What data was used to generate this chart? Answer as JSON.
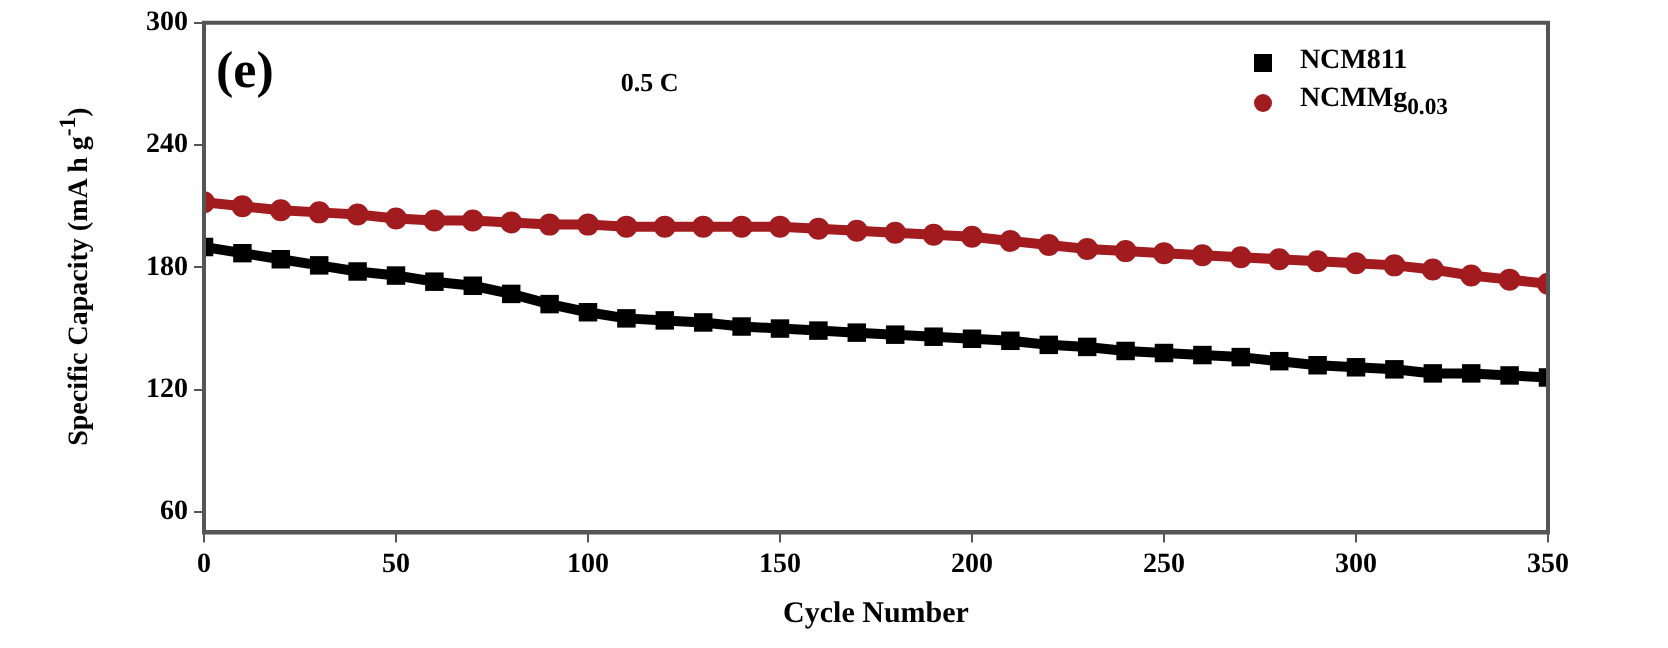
{
  "chart_data": {
    "type": "line",
    "xlabel": "Cycle Number",
    "ylabel": "Specific Capacity (mA h g$^{-1}$)",
    "annotations": [
      "(e)",
      "0.5 C"
    ],
    "x": [
      0,
      10,
      20,
      30,
      40,
      50,
      60,
      70,
      80,
      90,
      100,
      110,
      120,
      130,
      140,
      150,
      160,
      170,
      180,
      190,
      200,
      210,
      220,
      230,
      240,
      250,
      260,
      270,
      280,
      290,
      300,
      310,
      320,
      330,
      340,
      350
    ],
    "series": [
      {
        "name": "NCM811",
        "color": "#000000",
        "marker": "square",
        "values": [
          190,
          187,
          184,
          181,
          178,
          176,
          173,
          171,
          167,
          162,
          158,
          155,
          154,
          153,
          151,
          150,
          149,
          148,
          147,
          146,
          145,
          144,
          142,
          141,
          139,
          138,
          137,
          136,
          134,
          132,
          131,
          130,
          128,
          128,
          127,
          126
        ]
      },
      {
        "name": "NCMMg$_{0.03}$",
        "color": "#a11b1f",
        "marker": "circle",
        "values": [
          212,
          210,
          208,
          207,
          206,
          204,
          203,
          203,
          202,
          201,
          201,
          200,
          200,
          200,
          200,
          200,
          199,
          198,
          197,
          196,
          195,
          193,
          191,
          189,
          188,
          187,
          186,
          185,
          184,
          183,
          182,
          181,
          179,
          176,
          174,
          172
        ]
      }
    ],
    "xlim": [
      0,
      350
    ],
    "xticks": [
      0,
      50,
      100,
      150,
      200,
      250,
      300,
      350
    ],
    "ylim": [
      50,
      300
    ],
    "yticks": [
      60,
      120,
      180,
      240,
      300
    ],
    "grid": false,
    "legend": "top right"
  }
}
